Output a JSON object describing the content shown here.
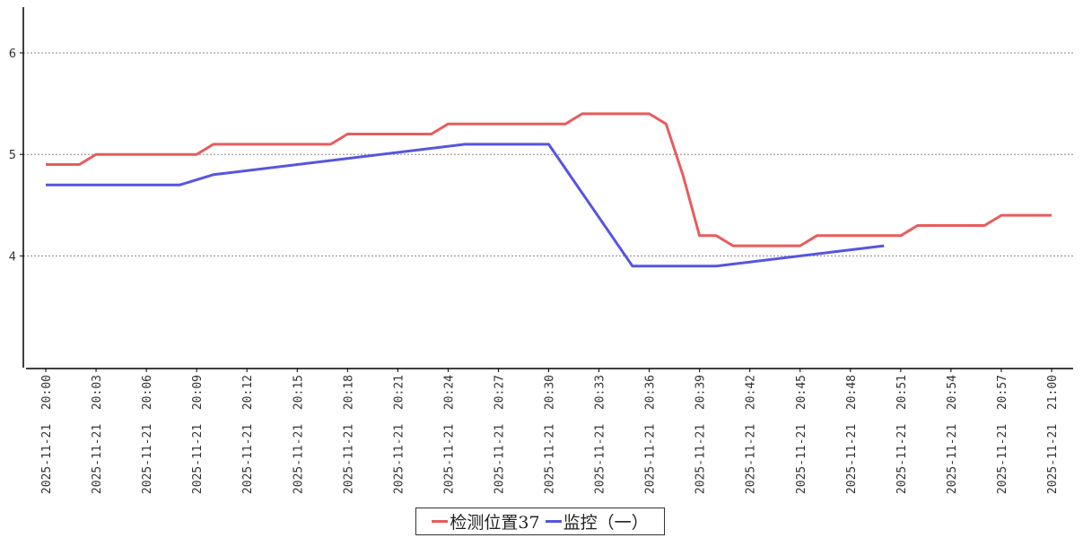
{
  "chart_data": {
    "type": "line",
    "x": [
      "2025-11-21 20:00",
      "2025-11-21 20:01",
      "2025-11-21 20:02",
      "2025-11-21 20:03",
      "2025-11-21 20:04",
      "2025-11-21 20:05",
      "2025-11-21 20:06",
      "2025-11-21 20:07",
      "2025-11-21 20:08",
      "2025-11-21 20:09",
      "2025-11-21 20:10",
      "2025-11-21 20:11",
      "2025-11-21 20:12",
      "2025-11-21 20:13",
      "2025-11-21 20:14",
      "2025-11-21 20:15",
      "2025-11-21 20:16",
      "2025-11-21 20:17",
      "2025-11-21 20:18",
      "2025-11-21 20:19",
      "2025-11-21 20:20",
      "2025-11-21 20:21",
      "2025-11-21 20:22",
      "2025-11-21 20:23",
      "2025-11-21 20:24",
      "2025-11-21 20:25",
      "2025-11-21 20:26",
      "2025-11-21 20:27",
      "2025-11-21 20:28",
      "2025-11-21 20:29",
      "2025-11-21 20:30",
      "2025-11-21 20:31",
      "2025-11-21 20:32",
      "2025-11-21 20:33",
      "2025-11-21 20:34",
      "2025-11-21 20:35",
      "2025-11-21 20:36",
      "2025-11-21 20:37",
      "2025-11-21 20:38",
      "2025-11-21 20:39",
      "2025-11-21 20:40",
      "2025-11-21 20:41",
      "2025-11-21 20:42",
      "2025-11-21 20:43",
      "2025-11-21 20:44",
      "2025-11-21 20:45",
      "2025-11-21 20:46",
      "2025-11-21 20:47",
      "2025-11-21 20:48",
      "2025-11-21 20:49",
      "2025-11-21 20:50",
      "2025-11-21 20:51",
      "2025-11-21 20:52",
      "2025-11-21 20:53",
      "2025-11-21 20:54",
      "2025-11-21 20:55",
      "2025-11-21 20:56",
      "2025-11-21 20:57",
      "2025-11-21 20:58",
      "2025-11-21 20:59",
      "2025-11-21 21:00"
    ],
    "x_tick_labels": [
      "2025-11-21 20:00",
      "2025-11-21 20:03",
      "2025-11-21 20:06",
      "2025-11-21 20:09",
      "2025-11-21 20:12",
      "2025-11-21 20:15",
      "2025-11-21 20:18",
      "2025-11-21 20:21",
      "2025-11-21 20:24",
      "2025-11-21 20:27",
      "2025-11-21 20:30",
      "2025-11-21 20:33",
      "2025-11-21 20:36",
      "2025-11-21 20:39",
      "2025-11-21 20:42",
      "2025-11-21 20:45",
      "2025-11-21 20:48",
      "2025-11-21 20:51",
      "2025-11-21 20:54",
      "2025-11-21 20:57",
      "2025-11-21 21:00"
    ],
    "y_ticks": [
      4,
      5,
      6
    ],
    "ylim": [
      2.9,
      6.45
    ],
    "grid": "horizontal dotted",
    "legend_position": "bottom-center",
    "title": "",
    "xlabel": "",
    "ylabel": "",
    "series": [
      {
        "name": "检测位置37",
        "color": "#e85c5c",
        "values": [
          4.9,
          4.9,
          4.9,
          5.0,
          5.0,
          5.0,
          5.0,
          5.0,
          5.0,
          5.0,
          5.1,
          5.1,
          5.1,
          5.1,
          5.1,
          5.1,
          5.1,
          5.1,
          5.2,
          5.2,
          5.2,
          5.2,
          5.2,
          5.2,
          5.3,
          5.3,
          5.3,
          5.3,
          5.3,
          5.3,
          5.3,
          5.3,
          5.4,
          5.4,
          5.4,
          5.4,
          5.4,
          5.3,
          4.8,
          4.2,
          4.2,
          4.1,
          4.1,
          4.1,
          4.1,
          4.1,
          4.2,
          4.2,
          4.2,
          4.2,
          4.2,
          4.2,
          4.3,
          4.3,
          4.3,
          4.3,
          4.3,
          4.4,
          4.4,
          4.4,
          4.4
        ]
      },
      {
        "name": "监控（一）",
        "color": "#5555e0",
        "values": [
          4.7,
          null,
          null,
          null,
          null,
          null,
          null,
          null,
          4.7,
          null,
          4.8,
          null,
          null,
          null,
          null,
          null,
          null,
          null,
          null,
          null,
          null,
          null,
          null,
          null,
          null,
          5.1,
          null,
          null,
          null,
          null,
          5.1,
          null,
          null,
          null,
          null,
          3.9,
          null,
          null,
          null,
          null,
          3.9,
          null,
          null,
          null,
          null,
          null,
          null,
          null,
          null,
          null,
          4.1,
          null,
          null,
          null,
          null,
          null,
          null,
          null,
          null,
          null,
          null
        ]
      }
    ]
  }
}
